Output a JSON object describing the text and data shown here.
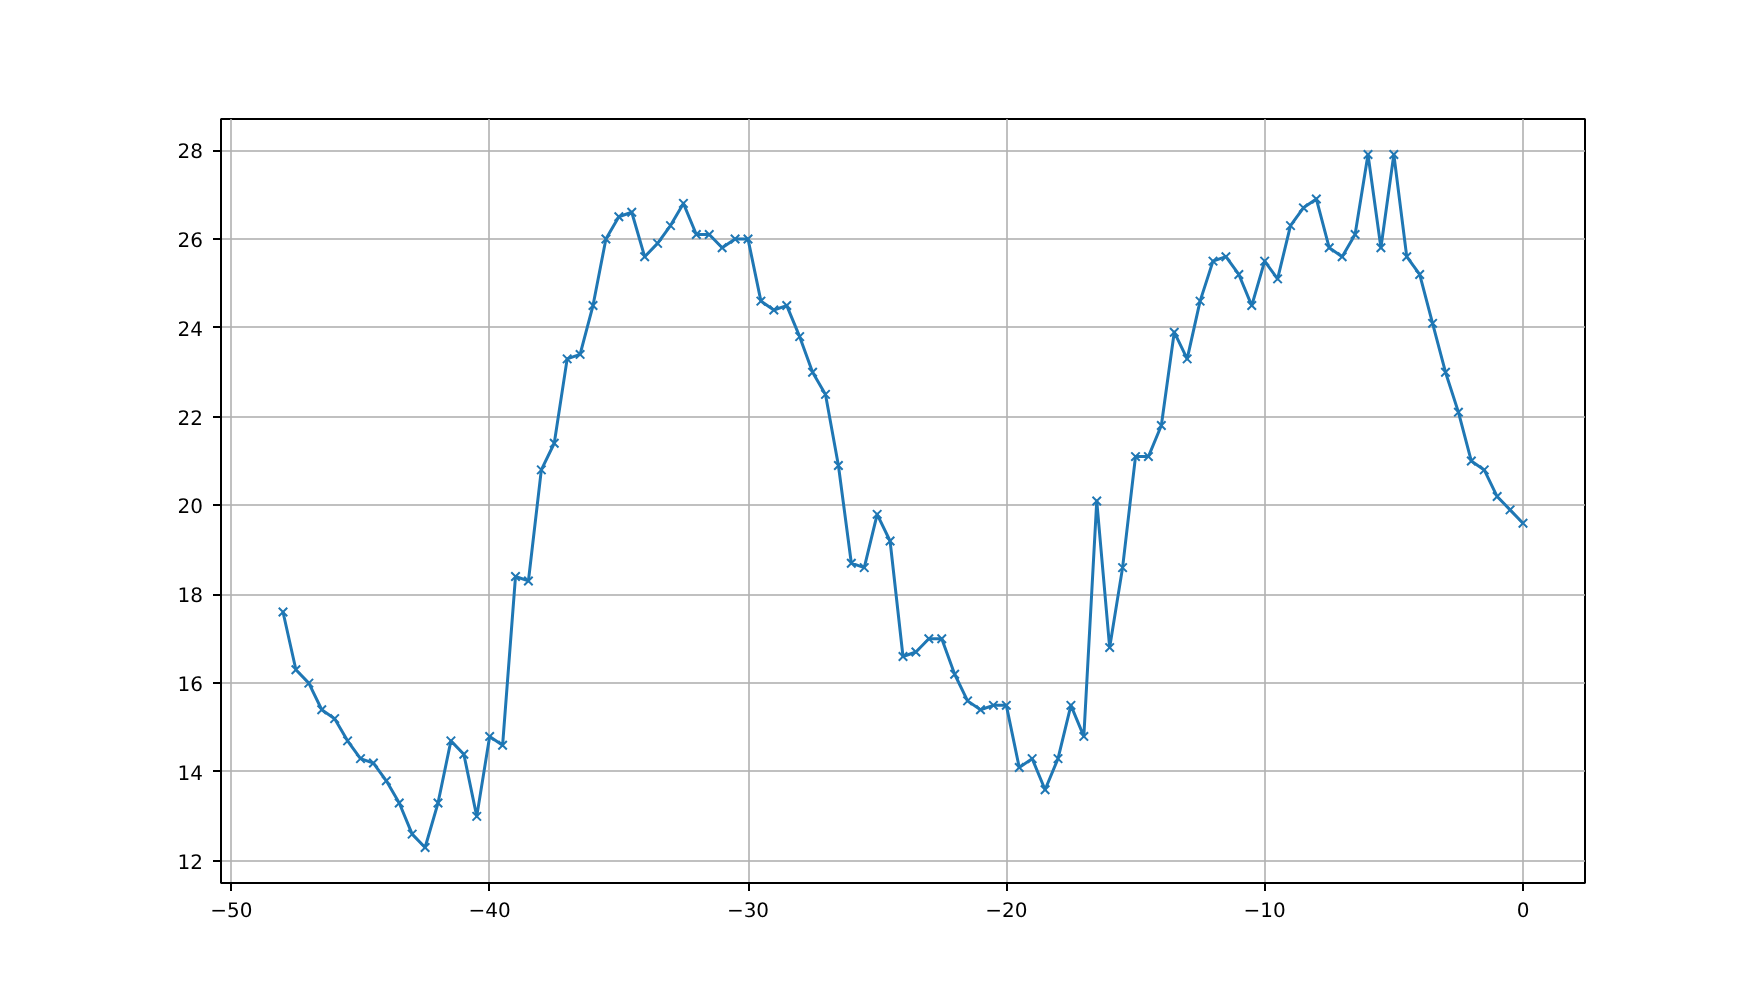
{
  "chart_data": {
    "type": "line",
    "x": [
      -48,
      -47.5,
      -47,
      -46.5,
      -46,
      -45.5,
      -45,
      -44.5,
      -44,
      -43.5,
      -43,
      -42.5,
      -42,
      -41.5,
      -41,
      -40.5,
      -40,
      -39.5,
      -39,
      -38.5,
      -38,
      -37.5,
      -37,
      -36.5,
      -36,
      -35.5,
      -35,
      -34.5,
      -34,
      -33.5,
      -33,
      -32.5,
      -32,
      -31.5,
      -31,
      -30.5,
      -30,
      -29.5,
      -29,
      -28.5,
      -28,
      -27.5,
      -27,
      -26.5,
      -26,
      -25.5,
      -25,
      -24.5,
      -24,
      -23.5,
      -23,
      -22.5,
      -22,
      -21.5,
      -21,
      -20.5,
      -20,
      -19.5,
      -19,
      -18.5,
      -18,
      -17.5,
      -17,
      -16.5,
      -16,
      -15.5,
      -15,
      -14.5,
      -14,
      -13.5,
      -13,
      -12.5,
      -12,
      -11.5,
      -11,
      -10.5,
      -10,
      -9.5,
      -9,
      -8.5,
      -8,
      -7.5,
      -7,
      -6.5,
      -6,
      -5.5,
      -5,
      -4.5,
      -4,
      -3.5,
      -3,
      -2.5,
      -2,
      -1.5,
      -1,
      -0.5,
      0
    ],
    "series": [
      {
        "color": "#1f77b4",
        "values": [
          17.6,
          16.3,
          16.0,
          15.4,
          15.2,
          14.7,
          14.3,
          14.2,
          13.8,
          13.3,
          12.6,
          12.3,
          13.3,
          14.7,
          14.4,
          13.0,
          14.8,
          14.6,
          18.4,
          18.3,
          20.8,
          21.4,
          23.3,
          23.4,
          24.5,
          26.0,
          26.5,
          26.6,
          25.6,
          25.9,
          26.3,
          26.8,
          26.1,
          26.1,
          25.8,
          26.0,
          26.0,
          24.6,
          24.4,
          24.5,
          23.8,
          23.0,
          22.5,
          20.9,
          18.7,
          18.6,
          19.8,
          19.2,
          16.6,
          16.7,
          17.0,
          17.0,
          16.2,
          15.6,
          15.4,
          15.5,
          15.5,
          14.1,
          14.3,
          13.6,
          14.3,
          15.5,
          14.8,
          20.1,
          16.8,
          18.6,
          21.1,
          21.1,
          21.8,
          23.9,
          23.3,
          24.6,
          25.5,
          25.6,
          25.2,
          24.5,
          25.5,
          25.1,
          26.3,
          26.7,
          26.9,
          25.8,
          25.6,
          26.1,
          27.9,
          25.8,
          27.9,
          25.6,
          25.2,
          24.1,
          23.0,
          22.1,
          21.0,
          20.8,
          20.2,
          19.9,
          19.6
        ]
      }
    ],
    "xlim": [
      -50.4,
      2.4
    ],
    "ylim": [
      11.5,
      28.7
    ],
    "xticks": [
      {
        "value": -50,
        "label": "−50"
      },
      {
        "value": -40,
        "label": "−40"
      },
      {
        "value": -30,
        "label": "−30"
      },
      {
        "value": -20,
        "label": "−20"
      },
      {
        "value": -10,
        "label": "−10"
      },
      0
    ],
    "yticks": [
      12,
      14,
      16,
      18,
      20,
      22,
      24,
      26,
      28
    ],
    "grid": true,
    "marker": "cross",
    "line_style": "solid"
  }
}
